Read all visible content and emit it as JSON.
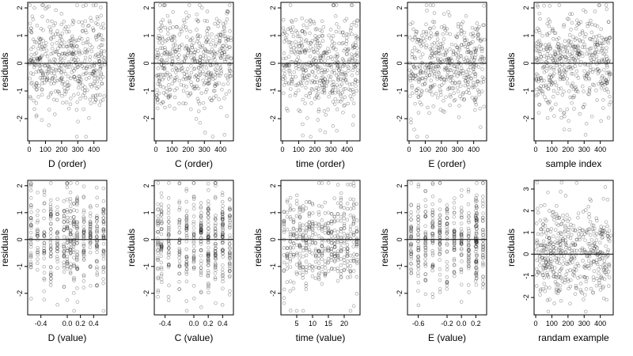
{
  "chart_data": [
    {
      "type": "scatter",
      "xlabel": "D (order)",
      "ylabel": "residuals",
      "xlim": [
        -10,
        480
      ],
      "ylim": [
        -2.8,
        2.2
      ],
      "xticks": [
        0,
        100,
        200,
        300,
        400
      ],
      "yticks": [
        -2,
        -1,
        0,
        1,
        2
      ],
      "hline": 0,
      "xkind": "index",
      "n": 480,
      "seed": 11
    },
    {
      "type": "scatter",
      "xlabel": "C (order)",
      "ylabel": "residuals",
      "xlim": [
        -10,
        480
      ],
      "ylim": [
        -2.8,
        2.2
      ],
      "xticks": [
        0,
        100,
        200,
        300,
        400
      ],
      "yticks": [
        -2,
        -1,
        0,
        1,
        2
      ],
      "hline": 0,
      "xkind": "index",
      "n": 480,
      "seed": 23
    },
    {
      "type": "scatter",
      "xlabel": "time (order)",
      "ylabel": "residuals",
      "xlim": [
        -10,
        480
      ],
      "ylim": [
        -2.8,
        2.2
      ],
      "xticks": [
        0,
        100,
        200,
        300,
        400
      ],
      "yticks": [
        -2,
        -1,
        0,
        1,
        2
      ],
      "hline": 0,
      "xkind": "index",
      "n": 480,
      "seed": 37
    },
    {
      "type": "scatter",
      "xlabel": "E (order)",
      "ylabel": "residuals",
      "xlim": [
        -10,
        480
      ],
      "ylim": [
        -2.8,
        2.2
      ],
      "xticks": [
        0,
        100,
        200,
        300,
        400
      ],
      "yticks": [
        -2,
        -1,
        0,
        1,
        2
      ],
      "hline": 0,
      "xkind": "index",
      "n": 480,
      "seed": 41
    },
    {
      "type": "scatter",
      "xlabel": "sample index",
      "ylabel": "residuals",
      "xlim": [
        -10,
        480
      ],
      "ylim": [
        -2.8,
        2.2
      ],
      "xticks": [
        0,
        100,
        200,
        300,
        400
      ],
      "yticks": [
        -2,
        -1,
        0,
        1,
        2
      ],
      "hline": 0,
      "xkind": "index",
      "n": 480,
      "seed": 53
    },
    {
      "type": "scatter",
      "xlabel": "D (value)",
      "ylabel": "residuals",
      "xlim": [
        -0.6,
        0.6
      ],
      "ylim": [
        -2.8,
        2.2
      ],
      "xticks": [
        -0.4,
        0.0,
        0.2,
        0.4
      ],
      "xtick_labels": [
        "-0.4",
        "0.0",
        "0.2",
        "0.4"
      ],
      "yticks": [
        -2,
        -1,
        0,
        1,
        2
      ],
      "hline": 0,
      "xkind": "levels",
      "levels": [
        -0.55,
        -0.45,
        -0.35,
        -0.25,
        -0.15,
        -0.05,
        0.0,
        0.05,
        0.1,
        0.15,
        0.25,
        0.35,
        0.45,
        0.55
      ],
      "n": 480,
      "seed": 61
    },
    {
      "type": "scatter",
      "xlabel": "C (value)",
      "ylabel": "residuals",
      "xlim": [
        -0.55,
        0.55
      ],
      "ylim": [
        -2.8,
        2.2
      ],
      "xticks": [
        -0.4,
        0.0,
        0.2,
        0.4
      ],
      "xtick_labels": [
        "-0.4",
        "0.0",
        "0.2",
        "0.4"
      ],
      "yticks": [
        -2,
        -1,
        0,
        1,
        2
      ],
      "hline": 0,
      "xkind": "levels",
      "levels": [
        -0.5,
        -0.45,
        -0.35,
        -0.2,
        -0.1,
        0.0,
        0.1,
        0.2,
        0.3,
        0.4,
        0.5
      ],
      "n": 480,
      "seed": 67
    },
    {
      "type": "scatter",
      "xlabel": "time (value)",
      "ylabel": "residuals",
      "xlim": [
        0,
        25
      ],
      "ylim": [
        -2.8,
        2.2
      ],
      "xticks": [
        5,
        10,
        15,
        20
      ],
      "yticks": [
        -2,
        -1,
        0,
        1,
        2
      ],
      "hline": 0,
      "xkind": "levels",
      "levels": [
        1,
        2,
        3,
        4,
        5,
        6,
        7,
        8,
        9,
        10,
        11,
        12,
        13,
        14,
        15,
        16,
        17,
        18,
        19,
        20,
        21,
        22,
        23,
        24
      ],
      "n": 480,
      "seed": 71
    },
    {
      "type": "scatter",
      "xlabel": "E (value)",
      "ylabel": "residuals",
      "xlim": [
        -0.75,
        0.35
      ],
      "ylim": [
        -2.8,
        2.2
      ],
      "xticks": [
        -0.6,
        -0.2,
        0.0,
        0.2
      ],
      "xtick_labels": [
        "-0.6",
        "-0.2",
        "0.0",
        "0.2"
      ],
      "yticks": [
        -2,
        -1,
        0,
        1,
        2
      ],
      "hline": 0,
      "xkind": "levels",
      "levels": [
        -0.7,
        -0.6,
        -0.5,
        -0.4,
        -0.3,
        -0.2,
        -0.1,
        0.0,
        0.1,
        0.2,
        0.21,
        0.3
      ],
      "n": 480,
      "seed": 79
    },
    {
      "type": "scatter",
      "xlabel": "randam example",
      "ylabel": "residuals",
      "xlim": [
        -10,
        480
      ],
      "ylim": [
        -2.8,
        3.4
      ],
      "xticks": [
        0,
        100,
        200,
        300,
        400
      ],
      "yticks": [
        -2,
        -1,
        0,
        1,
        2,
        3
      ],
      "hline": 0,
      "xkind": "index",
      "n": 480,
      "seed": 97
    }
  ]
}
